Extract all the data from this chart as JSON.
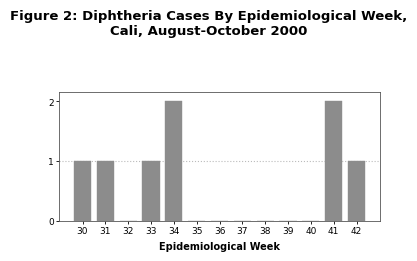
{
  "title": "Figure 2: Diphtheria Cases By Epidemiological Week,\nCali, August-October 2000",
  "xlabel": "Epidemiological Week",
  "ylabel": "",
  "weeks": [
    30,
    31,
    32,
    33,
    34,
    35,
    36,
    37,
    38,
    39,
    40,
    41,
    42
  ],
  "cases": [
    1,
    1,
    0,
    1,
    2,
    0,
    0,
    0,
    0,
    0,
    0,
    2,
    1
  ],
  "bar_color": "#8c8c8c",
  "bar_edge_color": "#8c8c8c",
  "ylim": [
    0,
    2.15
  ],
  "yticks": [
    0,
    1,
    2
  ],
  "background_color": "#ffffff",
  "grid_color": "#bbbbbb",
  "title_fontsize": 9.5,
  "label_fontsize": 7,
  "tick_fontsize": 6.5
}
